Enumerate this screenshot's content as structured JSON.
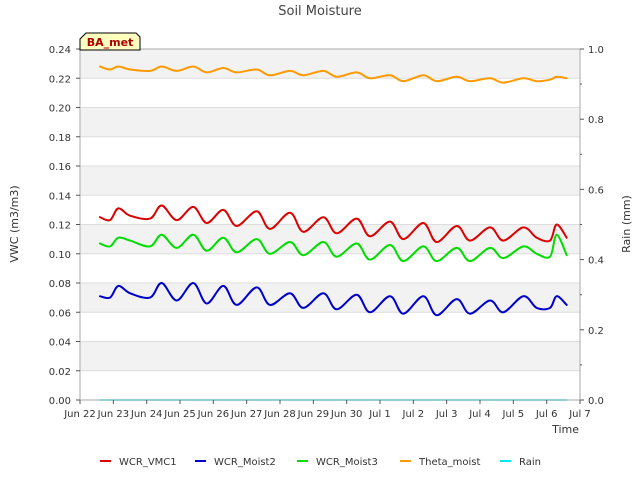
{
  "chart_data": {
    "type": "line",
    "title": "Soil Moisture",
    "xlabel": "Time",
    "ylabel": "VWC (m3/m3)",
    "y2label": "Rain (mm)",
    "badge": "BA_met",
    "xlim": [
      0,
      15
    ],
    "ylim": [
      0,
      0.24
    ],
    "y2lim": [
      0,
      1.0
    ],
    "x_ticks": [
      {
        "x": 0,
        "label": "Jun 22"
      },
      {
        "x": 1,
        "label": "Jun 23"
      },
      {
        "x": 2,
        "label": "Jun 24"
      },
      {
        "x": 3,
        "label": "Jun 25"
      },
      {
        "x": 4,
        "label": "Jun 26"
      },
      {
        "x": 5,
        "label": "Jun 27"
      },
      {
        "x": 6,
        "label": "Jun 28"
      },
      {
        "x": 7,
        "label": "Jun 29"
      },
      {
        "x": 8,
        "label": "Jun 30"
      },
      {
        "x": 9,
        "label": "Jul 1"
      },
      {
        "x": 10,
        "label": "Jul 2"
      },
      {
        "x": 11,
        "label": "Jul 3"
      },
      {
        "x": 12,
        "label": "Jul 4"
      },
      {
        "x": 13,
        "label": "Jul 5"
      },
      {
        "x": 14,
        "label": "Jul 6"
      },
      {
        "x": 15,
        "label": "Jul 7"
      }
    ],
    "y_ticks": [
      "0.00",
      "0.02",
      "0.04",
      "0.06",
      "0.08",
      "0.10",
      "0.12",
      "0.14",
      "0.16",
      "0.18",
      "0.20",
      "0.22",
      "0.24"
    ],
    "y2_ticks": [
      "0.0",
      "0.2",
      "0.4",
      "0.6",
      "0.8",
      "1.0"
    ],
    "grid": true,
    "legend_position": "bottom",
    "x": [
      0.6,
      0.9,
      1.15,
      1.5,
      2.1,
      2.45,
      2.9,
      3.4,
      3.8,
      4.3,
      4.7,
      5.3,
      5.7,
      6.3,
      6.7,
      7.3,
      7.7,
      8.3,
      8.7,
      9.3,
      9.7,
      10.3,
      10.7,
      11.3,
      11.7,
      12.3,
      12.7,
      13.3,
      13.7,
      14.1,
      14.3,
      14.6
    ],
    "series": [
      {
        "name": "WCR_VMC1",
        "color": "#dd0000",
        "values": [
          0.125,
          0.123,
          0.131,
          0.126,
          0.124,
          0.133,
          0.123,
          0.132,
          0.121,
          0.13,
          0.119,
          0.129,
          0.117,
          0.128,
          0.115,
          0.125,
          0.114,
          0.124,
          0.112,
          0.122,
          0.11,
          0.121,
          0.108,
          0.119,
          0.109,
          0.118,
          0.109,
          0.118,
          0.111,
          0.109,
          0.12,
          0.111
        ]
      },
      {
        "name": "WCR_Moist2",
        "color": "#0000cc",
        "values": [
          0.071,
          0.07,
          0.078,
          0.073,
          0.07,
          0.08,
          0.068,
          0.08,
          0.066,
          0.078,
          0.065,
          0.077,
          0.065,
          0.073,
          0.063,
          0.073,
          0.062,
          0.072,
          0.06,
          0.071,
          0.059,
          0.071,
          0.058,
          0.069,
          0.059,
          0.068,
          0.06,
          0.071,
          0.063,
          0.063,
          0.071,
          0.065
        ]
      },
      {
        "name": "WCR_Moist3",
        "color": "#00dd00",
        "values": [
          0.107,
          0.105,
          0.111,
          0.109,
          0.105,
          0.113,
          0.104,
          0.113,
          0.102,
          0.111,
          0.101,
          0.11,
          0.1,
          0.108,
          0.099,
          0.108,
          0.098,
          0.107,
          0.096,
          0.106,
          0.095,
          0.105,
          0.095,
          0.104,
          0.095,
          0.104,
          0.097,
          0.105,
          0.1,
          0.098,
          0.113,
          0.099
        ]
      },
      {
        "name": "Theta_moist",
        "color": "#ff9900",
        "values": [
          0.228,
          0.226,
          0.228,
          0.226,
          0.225,
          0.228,
          0.225,
          0.228,
          0.224,
          0.227,
          0.224,
          0.226,
          0.222,
          0.225,
          0.222,
          0.225,
          0.221,
          0.224,
          0.22,
          0.222,
          0.218,
          0.222,
          0.218,
          0.221,
          0.218,
          0.22,
          0.217,
          0.22,
          0.218,
          0.219,
          0.221,
          0.22
        ]
      },
      {
        "name": "Rain",
        "color": "#00e5ee",
        "axis": "right",
        "values": [
          0,
          0,
          0,
          0,
          0,
          0,
          0,
          0,
          0,
          0,
          0,
          0,
          0,
          0,
          0,
          0,
          0,
          0,
          0,
          0,
          0,
          0,
          0,
          0,
          0,
          0,
          0,
          0,
          0,
          0,
          0,
          0
        ]
      }
    ]
  }
}
